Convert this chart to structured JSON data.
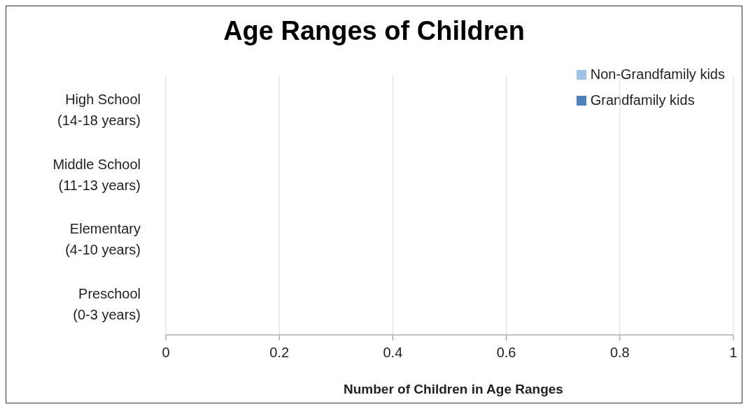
{
  "chart_data": {
    "type": "bar",
    "orientation": "horizontal",
    "title": "Age Ranges of Children",
    "xlabel": "Number of Children in Age Ranges",
    "categories": [
      "High School (14-18 years)",
      "Middle School (11-13 years)",
      "Elementary (4-10 years)",
      "Preschool (0-3 years)"
    ],
    "series": [
      {
        "name": "Non-Grandfamily kids",
        "color": "#9dc3e6",
        "values": [
          null,
          null,
          null,
          null
        ]
      },
      {
        "name": "Grandfamily kids",
        "color": "#4f81bd",
        "values": [
          null,
          null,
          null,
          null
        ]
      }
    ],
    "xlim": [
      0,
      1
    ],
    "xticks": [
      0,
      0.2,
      0.4,
      0.6,
      0.8,
      1
    ],
    "grid": "x",
    "legend": "top right"
  }
}
